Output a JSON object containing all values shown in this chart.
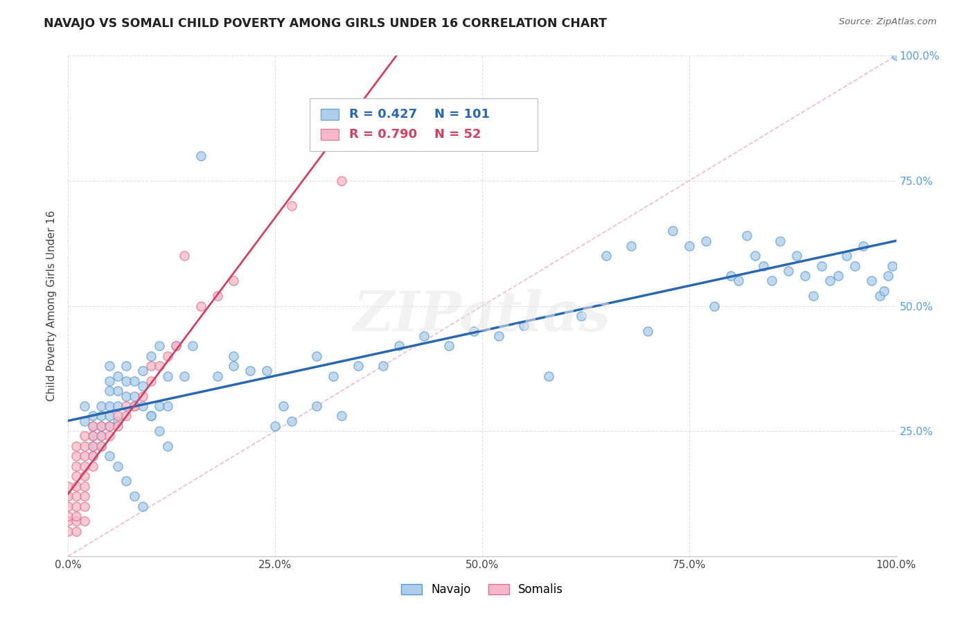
{
  "title": "NAVAJO VS SOMALI CHILD POVERTY AMONG GIRLS UNDER 16 CORRELATION CHART",
  "source": "Source: ZipAtlas.com",
  "ylabel": "Child Poverty Among Girls Under 16",
  "watermark": "ZIPatlas",
  "legend_navajo": "Navajo",
  "legend_somali": "Somalis",
  "navajo_R": 0.427,
  "navajo_N": 101,
  "somali_R": 0.79,
  "somali_N": 52,
  "navajo_color": "#aecde8",
  "somali_color": "#f4b8c8",
  "navajo_edge_color": "#5b9bd5",
  "somali_edge_color": "#e07090",
  "navajo_line_color": "#2968b0",
  "somali_line_color": "#d04060",
  "ref_line_color": "#e8a0b8",
  "background_color": "#ffffff",
  "grid_color": "#cccccc",
  "xlim": [
    0,
    1
  ],
  "ylim": [
    0,
    1
  ],
  "xticks": [
    0,
    0.25,
    0.5,
    0.75,
    1.0
  ],
  "yticks": [
    0.25,
    0.5,
    0.75,
    1.0
  ],
  "xticklabels": [
    "0.0%",
    "25.0%",
    "50.0%",
    "75.0%",
    "100.0%"
  ],
  "yticklabels": [
    "25.0%",
    "50.0%",
    "75.0%",
    "100.0%"
  ],
  "navajo_x": [
    0.02,
    0.02,
    0.03,
    0.03,
    0.03,
    0.03,
    0.03,
    0.04,
    0.04,
    0.04,
    0.04,
    0.05,
    0.05,
    0.05,
    0.05,
    0.05,
    0.05,
    0.06,
    0.06,
    0.06,
    0.06,
    0.07,
    0.07,
    0.07,
    0.08,
    0.08,
    0.08,
    0.09,
    0.09,
    0.09,
    0.1,
    0.1,
    0.11,
    0.11,
    0.12,
    0.12,
    0.13,
    0.14,
    0.15,
    0.16,
    0.18,
    0.2,
    0.22,
    0.24,
    0.26,
    0.3,
    0.32,
    0.35,
    0.38,
    0.4,
    0.43,
    0.46,
    0.49,
    0.52,
    0.55,
    0.58,
    0.62,
    0.65,
    0.68,
    0.7,
    0.73,
    0.75,
    0.77,
    0.78,
    0.8,
    0.81,
    0.82,
    0.83,
    0.84,
    0.85,
    0.86,
    0.87,
    0.88,
    0.89,
    0.9,
    0.91,
    0.92,
    0.93,
    0.94,
    0.95,
    0.96,
    0.97,
    0.98,
    0.985,
    0.99,
    0.995,
    0.3,
    0.33,
    0.2,
    0.25,
    0.27,
    0.04,
    0.05,
    0.06,
    0.07,
    0.08,
    0.09,
    0.1,
    0.11,
    0.12,
    1.0
  ],
  "navajo_y": [
    0.3,
    0.27,
    0.28,
    0.26,
    0.24,
    0.22,
    0.2,
    0.3,
    0.28,
    0.26,
    0.24,
    0.38,
    0.35,
    0.33,
    0.3,
    0.28,
    0.26,
    0.36,
    0.33,
    0.3,
    0.27,
    0.38,
    0.35,
    0.32,
    0.35,
    0.32,
    0.3,
    0.37,
    0.34,
    0.3,
    0.4,
    0.28,
    0.42,
    0.3,
    0.36,
    0.3,
    0.42,
    0.36,
    0.42,
    0.8,
    0.36,
    0.4,
    0.37,
    0.37,
    0.3,
    0.4,
    0.36,
    0.38,
    0.38,
    0.42,
    0.44,
    0.42,
    0.45,
    0.44,
    0.46,
    0.36,
    0.48,
    0.6,
    0.62,
    0.45,
    0.65,
    0.62,
    0.63,
    0.5,
    0.56,
    0.55,
    0.64,
    0.6,
    0.58,
    0.55,
    0.63,
    0.57,
    0.6,
    0.56,
    0.52,
    0.58,
    0.55,
    0.56,
    0.6,
    0.58,
    0.62,
    0.55,
    0.52,
    0.53,
    0.56,
    0.58,
    0.3,
    0.28,
    0.38,
    0.26,
    0.27,
    0.22,
    0.2,
    0.18,
    0.15,
    0.12,
    0.1,
    0.28,
    0.25,
    0.22,
    1.0
  ],
  "somali_x": [
    0.0,
    0.0,
    0.0,
    0.0,
    0.0,
    0.0,
    0.01,
    0.01,
    0.01,
    0.01,
    0.01,
    0.01,
    0.01,
    0.01,
    0.01,
    0.01,
    0.02,
    0.02,
    0.02,
    0.02,
    0.02,
    0.02,
    0.02,
    0.02,
    0.02,
    0.03,
    0.03,
    0.03,
    0.03,
    0.03,
    0.04,
    0.04,
    0.04,
    0.05,
    0.05,
    0.06,
    0.06,
    0.07,
    0.07,
    0.08,
    0.09,
    0.1,
    0.1,
    0.11,
    0.12,
    0.13,
    0.14,
    0.16,
    0.18,
    0.2,
    0.27,
    0.33
  ],
  "somali_y": [
    0.05,
    0.07,
    0.08,
    0.1,
    0.12,
    0.14,
    0.05,
    0.07,
    0.08,
    0.1,
    0.12,
    0.14,
    0.16,
    0.18,
    0.2,
    0.22,
    0.07,
    0.1,
    0.12,
    0.14,
    0.16,
    0.18,
    0.2,
    0.22,
    0.24,
    0.18,
    0.2,
    0.22,
    0.24,
    0.26,
    0.22,
    0.24,
    0.26,
    0.24,
    0.26,
    0.26,
    0.28,
    0.28,
    0.3,
    0.3,
    0.32,
    0.35,
    0.38,
    0.38,
    0.4,
    0.42,
    0.6,
    0.5,
    0.52,
    0.55,
    0.7,
    0.75
  ]
}
